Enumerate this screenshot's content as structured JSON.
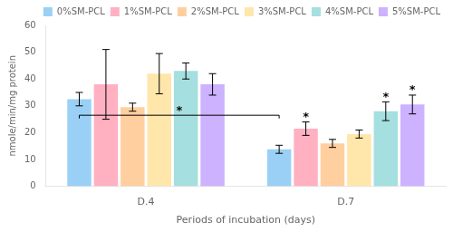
{
  "chart_data": {
    "type": "bar",
    "categories": [
      "D.4",
      "D.7"
    ],
    "series": [
      {
        "name": "0%SM-PCL",
        "values": [
          32.5,
          13.8
        ],
        "errors": [
          2.5,
          1.5
        ]
      },
      {
        "name": "1%SM-PCL",
        "values": [
          38.0,
          21.5
        ],
        "errors": [
          13.0,
          2.5
        ]
      },
      {
        "name": "2%SM-PCL",
        "values": [
          29.5,
          16.0
        ],
        "errors": [
          1.5,
          1.5
        ]
      },
      {
        "name": "3%SM-PCL",
        "values": [
          42.0,
          19.5
        ],
        "errors": [
          7.5,
          1.5
        ]
      },
      {
        "name": "4%SM-PCL",
        "values": [
          43.0,
          28.0
        ],
        "errors": [
          3.0,
          3.5
        ]
      },
      {
        "name": "5%SM-PCL",
        "values": [
          38.0,
          30.5
        ],
        "errors": [
          4.0,
          3.5
        ]
      }
    ],
    "xlabel": "Periods of incubation (days)",
    "ylabel": "nmole/min/mg protein",
    "ylim": [
      0,
      60
    ],
    "yticks": [
      0,
      10,
      20,
      30,
      40,
      50,
      60
    ],
    "grid": false,
    "legend": "upper right",
    "annotations": [
      {
        "text": "*",
        "series": "1%SM-PCL",
        "category": "D.7",
        "y": 24.8
      },
      {
        "text": "*",
        "series": "4%SM-PCL",
        "category": "D.7",
        "y": 32.3
      },
      {
        "text": "*",
        "series": "5%SM-PCL",
        "category": "D.7",
        "y": 34.8
      },
      {
        "text": "*",
        "y": 27.2,
        "bracket": {
          "y": 26.5,
          "from": {
            "series": "0%SM-PCL",
            "category": "D.4"
          },
          "to": {
            "series": "0%SM-PCL",
            "category": "D.7"
          }
        }
      }
    ]
  }
}
